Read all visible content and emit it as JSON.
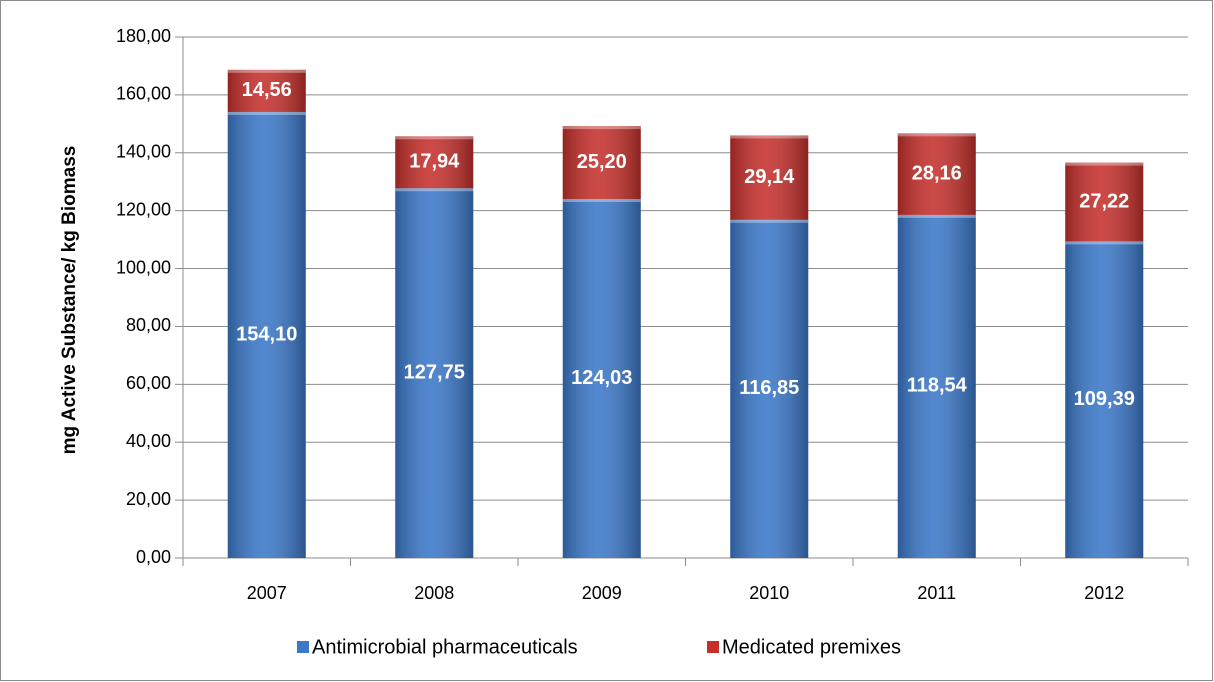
{
  "chart_data": {
    "type": "bar",
    "stacked": true,
    "y_label": "mg Active Substance/ kg Biomass",
    "categories": [
      "2007",
      "2008",
      "2009",
      "2010",
      "2011",
      "2012"
    ],
    "series": [
      {
        "name": "Antimicrobial pharmaceuticals",
        "color": "#3b78c9",
        "values": [
          154.1,
          127.75,
          124.03,
          116.85,
          118.54,
          109.39
        ],
        "value_labels": [
          "154,10",
          "127,75",
          "124,03",
          "116,85",
          "118,54",
          "109,39"
        ]
      },
      {
        "name": "Medicated premixes",
        "color": "#c5302c",
        "values": [
          14.56,
          17.94,
          25.2,
          29.14,
          28.16,
          27.22
        ],
        "value_labels": [
          "14,56",
          "17,94",
          "25,20",
          "29,14",
          "28,16",
          "27,22"
        ]
      }
    ],
    "ylim": [
      0,
      180
    ],
    "yticks": [
      {
        "value": 0,
        "label": "0,00"
      },
      {
        "value": 20,
        "label": "20,00"
      },
      {
        "value": 40,
        "label": "40,00"
      },
      {
        "value": 60,
        "label": "60,00"
      },
      {
        "value": 80,
        "label": "80,00"
      },
      {
        "value": 100,
        "label": "100,00"
      },
      {
        "value": 120,
        "label": "120,00"
      },
      {
        "value": 140,
        "label": "140,00"
      },
      {
        "value": 160,
        "label": "160,00"
      },
      {
        "value": 180,
        "label": "180,00"
      }
    ],
    "grid": true,
    "legend": "bottom"
  }
}
